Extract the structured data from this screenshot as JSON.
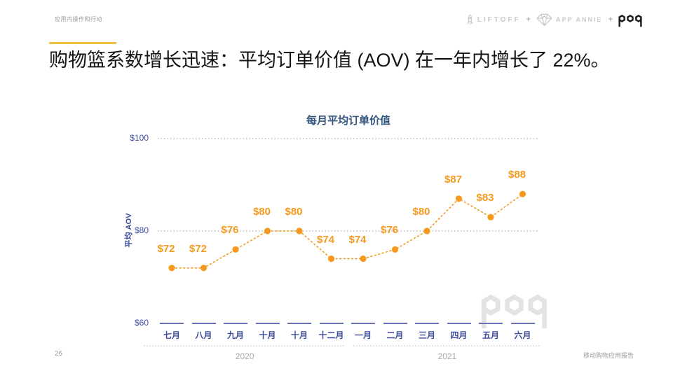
{
  "header": {
    "section_label": "应用内操作和行动",
    "logos": {
      "liftoff": "LIFTOFF",
      "plus1": "+",
      "app_annie": "APP ANNIE",
      "plus2": "+",
      "poq": "poq"
    }
  },
  "title": "购物篮系数增长迅速：平均订单价值 (AOV) 在一年内增长了 22%。",
  "chart_data": {
    "type": "line",
    "title": "每月平均订单价值",
    "ylabel": "平均 AOV",
    "categories": [
      "七月",
      "八月",
      "九月",
      "十月",
      "十月",
      "十二月",
      "一月",
      "二月",
      "三月",
      "四月",
      "五月",
      "六月"
    ],
    "values": [
      72,
      72,
      76,
      80,
      80,
      74,
      74,
      76,
      80,
      87,
      83,
      88
    ],
    "point_labels": [
      "$72",
      "$72",
      "$76",
      "$80",
      "$80",
      "$74",
      "$74",
      "$76",
      "$80",
      "$87",
      "$83",
      "$88"
    ],
    "ylim": [
      60,
      100
    ],
    "y_ticks": [
      {
        "label": "$100",
        "value": 100,
        "gridline": true
      },
      {
        "label": "$80",
        "value": 80,
        "gridline": true
      },
      {
        "label": "$60",
        "value": 60,
        "gridline": false
      }
    ],
    "year_groups": [
      {
        "label": "2020",
        "from": 0,
        "to": 5
      },
      {
        "label": "2021",
        "from": 6,
        "to": 11
      }
    ],
    "line_style": "dotted",
    "marker_color": "#F59A1E",
    "legend": "none",
    "grid": "horizontal-dotted"
  },
  "footer": {
    "page_number": "26",
    "report_label": "移动购物应用报告"
  },
  "colors": {
    "accent_yellow": "#F2C43D",
    "orange": "#F59A1E",
    "navy_axis": "#3D4DA1",
    "tick_dash": "#6672B5",
    "chart_title_blue": "#35567E",
    "grid_gray": "#CFCFCF",
    "muted_gray": "#9B9B9B",
    "logo_gray": "#C7CACD",
    "watermark_gray": "#E3E3E3"
  }
}
